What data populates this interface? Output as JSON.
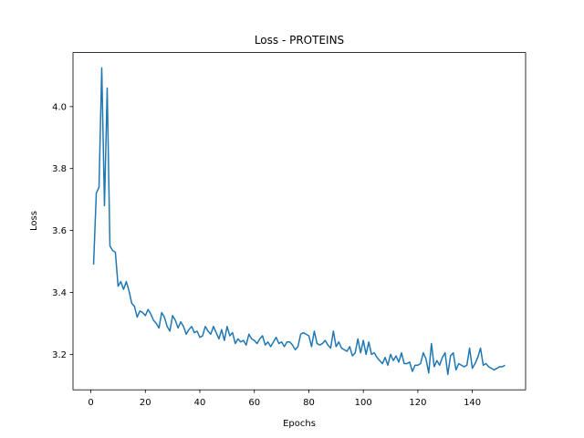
{
  "chart_data": {
    "type": "line",
    "title": "Loss - PROTEINS",
    "xlabel": "Epochs",
    "ylabel": "Loss",
    "x": [
      1,
      2,
      3,
      4,
      5,
      6,
      7,
      8,
      9,
      10,
      11,
      12,
      13,
      14,
      15,
      16,
      17,
      18,
      19,
      20,
      21,
      22,
      23,
      24,
      25,
      26,
      27,
      28,
      29,
      30,
      31,
      32,
      33,
      34,
      35,
      36,
      37,
      38,
      39,
      40,
      41,
      42,
      43,
      44,
      45,
      46,
      47,
      48,
      49,
      50,
      51,
      52,
      53,
      54,
      55,
      56,
      57,
      58,
      59,
      60,
      61,
      62,
      63,
      64,
      65,
      66,
      67,
      68,
      69,
      70,
      71,
      72,
      73,
      74,
      75,
      76,
      77,
      78,
      79,
      80,
      81,
      82,
      83,
      84,
      85,
      86,
      87,
      88,
      89,
      90,
      91,
      92,
      93,
      94,
      95,
      96,
      97,
      98,
      99,
      100,
      101,
      102,
      103,
      104,
      105,
      106,
      107,
      108,
      109,
      110,
      111,
      112,
      113,
      114,
      115,
      116,
      117,
      118,
      119,
      120,
      121,
      122,
      123,
      124,
      125,
      126,
      127,
      128,
      129,
      130,
      131,
      132,
      133,
      134,
      135,
      136,
      137,
      138,
      139,
      140,
      141,
      142,
      143,
      144,
      145,
      146,
      147,
      148,
      149,
      150,
      151,
      152
    ],
    "series": [
      {
        "color": "#1f77b4",
        "values": [
          3.49,
          3.72,
          3.74,
          4.125,
          3.68,
          4.06,
          3.55,
          3.535,
          3.53,
          3.42,
          3.435,
          3.41,
          3.435,
          3.405,
          3.365,
          3.355,
          3.32,
          3.34,
          3.335,
          3.325,
          3.345,
          3.33,
          3.31,
          3.3,
          3.285,
          3.335,
          3.32,
          3.29,
          3.275,
          3.325,
          3.31,
          3.285,
          3.305,
          3.29,
          3.265,
          3.28,
          3.29,
          3.27,
          3.275,
          3.255,
          3.26,
          3.29,
          3.275,
          3.265,
          3.29,
          3.27,
          3.25,
          3.28,
          3.245,
          3.29,
          3.26,
          3.27,
          3.235,
          3.25,
          3.24,
          3.245,
          3.23,
          3.265,
          3.25,
          3.245,
          3.235,
          3.25,
          3.26,
          3.23,
          3.24,
          3.225,
          3.24,
          3.255,
          3.235,
          3.24,
          3.225,
          3.24,
          3.24,
          3.23,
          3.215,
          3.225,
          3.265,
          3.27,
          3.265,
          3.26,
          3.225,
          3.275,
          3.235,
          3.23,
          3.235,
          3.245,
          3.23,
          3.22,
          3.275,
          3.225,
          3.24,
          3.22,
          3.215,
          3.21,
          3.225,
          3.195,
          3.205,
          3.25,
          3.205,
          3.245,
          3.2,
          3.24,
          3.2,
          3.205,
          3.19,
          3.18,
          3.17,
          3.19,
          3.165,
          3.2,
          3.18,
          3.195,
          3.175,
          3.205,
          3.17,
          3.17,
          3.175,
          3.145,
          3.165,
          3.165,
          3.17,
          3.205,
          3.185,
          3.14,
          3.235,
          3.16,
          3.18,
          3.165,
          3.19,
          3.205,
          3.135,
          3.195,
          3.205,
          3.15,
          3.17,
          3.165,
          3.16,
          3.165,
          3.22,
          3.155,
          3.17,
          3.19,
          3.22,
          3.165,
          3.17,
          3.16,
          3.155,
          3.15,
          3.155,
          3.16,
          3.16,
          3.165
        ]
      }
    ],
    "xlim": [
      -6.55,
      159.55
    ],
    "xticks": [
      0,
      20,
      40,
      60,
      80,
      100,
      120,
      140
    ],
    "ylim": [
      3.0855,
      4.1745
    ],
    "yticks": [
      3.2,
      3.4,
      3.6,
      3.8,
      {
        "value": 4,
        "label": "4.0"
      }
    ],
    "grid": false
  }
}
